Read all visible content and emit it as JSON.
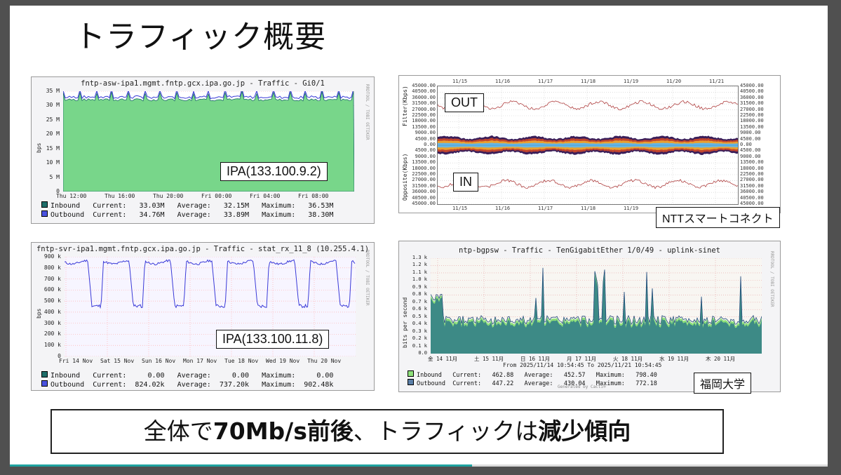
{
  "slide": {
    "title": "トラフィック概要",
    "progress_percent": 56.5
  },
  "graph1": {
    "title": "fntp-asw-ipa1.mgmt.fntp.gcx.ipa.go.jp - Traffic - Gi0/1",
    "ylabel": "bps",
    "yticks": [
      "0",
      "5 M",
      "10 M",
      "15 M",
      "20 M",
      "25 M",
      "30 M",
      "35 M"
    ],
    "xticks": [
      "Thu 12:00",
      "Thu 16:00",
      "Thu 20:00",
      "Fri 00:00",
      "Fri 04:00",
      "Fri 08:00"
    ],
    "side": "RRDTOOL / TOBI OETIKER",
    "label": "IPA(133.100.9.2)",
    "legend": [
      {
        "name": "Inbound",
        "current": "33.03M",
        "average": "32.15M",
        "maximum": "36.53M",
        "color": "#1f6e6a"
      },
      {
        "name": "Outbound",
        "current": "34.76M",
        "average": "33.89M",
        "maximum": "38.30M",
        "color": "#4a52e0"
      }
    ],
    "legend_words": {
      "current": "Current:",
      "average": "Average:",
      "maximum": "Maximum:"
    }
  },
  "graph2": {
    "top_dates": [
      "11/15",
      "11/16",
      "11/17",
      "11/18",
      "11/19",
      "11/20",
      "11/21"
    ],
    "bottom_dates": [
      "11/15",
      "11/16",
      "11/17",
      "11/18",
      "11/19"
    ],
    "yticks": [
      "45000.00",
      "40500.00",
      "36000.00",
      "31500.00",
      "27000.00",
      "22500.00",
      "18000.00",
      "13500.00",
      "9000.00",
      "4500.00",
      "0.00",
      "4500.00",
      "9000.00",
      "13500.00",
      "18000.00",
      "22500.00",
      "27000.00",
      "31500.00",
      "36000.00",
      "40500.00",
      "45000.00"
    ],
    "left_top_axis": "Filter(Kbps)",
    "left_bottom_axis": "Opposite(Kbps)",
    "out_label": "OUT",
    "in_label": "IN",
    "provider_label": "NTTスマートコネクト"
  },
  "graph3": {
    "title": "fntp-svr-ipa1.mgmt.fntp.gcx.ipa.go.jp - Traffic - stat_rx_11_8 (10.255.4.1)",
    "ylabel": "bps",
    "yticks": [
      "0",
      "100 k",
      "200 k",
      "300 k",
      "400 k",
      "500 k",
      "600 k",
      "700 k",
      "800 k",
      "900 k"
    ],
    "xticks": [
      "Fri 14 Nov",
      "Sat 15 Nov",
      "Sun 16 Nov",
      "Mon 17 Nov",
      "Tue 18 Nov",
      "Wed 19 Nov",
      "Thu 20 Nov"
    ],
    "side": "RRDTOOL / TOBI OETIKER",
    "label": "IPA(133.100.11.8)",
    "legend": [
      {
        "name": "Inbound",
        "current": "0.00",
        "average": "0.00",
        "maximum": "0.00",
        "color": "#1f6e6a"
      },
      {
        "name": "Outbound",
        "current": "824.02k",
        "average": "737.20k",
        "maximum": "902.48k",
        "color": "#4a52e0"
      }
    ],
    "legend_words": {
      "current": "Current:",
      "average": "Average:",
      "maximum": "Maximum:"
    }
  },
  "graph4": {
    "title": "ntp-bgpsw - Traffic - TenGigabitEther 1/0/49 - uplink-sinet",
    "ylabel": "bits per second",
    "yticks": [
      "0.0",
      "0.1 k",
      "0.2 k",
      "0.3 k",
      "0.4 k",
      "0.5 k",
      "0.6 k",
      "0.7 k",
      "0.8 k",
      "0.9 k",
      "1.0 k",
      "1.1 k",
      "1.2 k",
      "1.3 k"
    ],
    "xticks": [
      "金 14 11月",
      "土 15 11月",
      "日 16 11月",
      "月 17 11月",
      "火 18 11月",
      "水 19 11月",
      "木 20 11月"
    ],
    "range": "From 2025/11/14 10:54:45 To 2025/11/21 10:54:45",
    "generated": "Generated by Cacti®",
    "side": "RRDTOOL / TOBI OETIKER",
    "legend": [
      {
        "name": "Inbound",
        "current": "462.88",
        "average": "452.57",
        "maximum": "798.40",
        "color": "#8ee07a"
      },
      {
        "name": "Outbound",
        "current": "447.22",
        "average": "430.04",
        "maximum": "772.18",
        "color": "#5a7fa8"
      }
    ],
    "legend_words": {
      "current": "Current:",
      "average": "Average:",
      "maximum": "Maximum:"
    },
    "provider_label": "福岡大学"
  },
  "conclusion": {
    "part1": "全体で",
    "part2": "70Mb/s前後",
    "part3": "、トラフィックは",
    "part4": "減少傾向"
  }
}
